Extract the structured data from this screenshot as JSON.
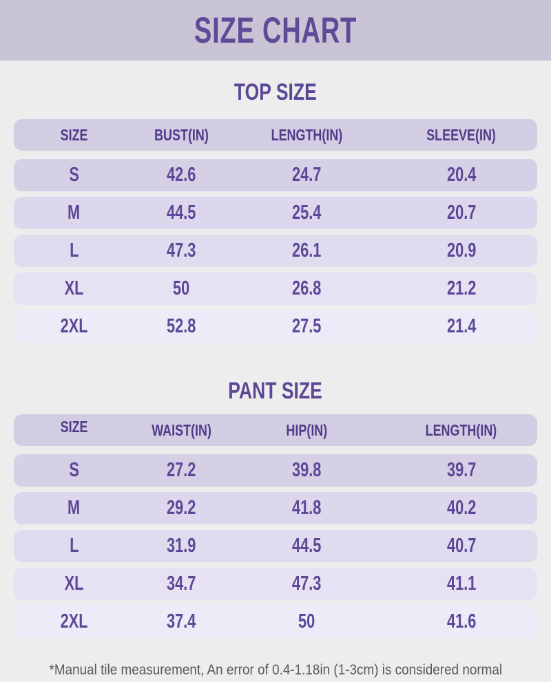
{
  "banner": {
    "title": "SIZE CHART"
  },
  "chart_data": [
    {
      "type": "table",
      "title": "TOP SIZE",
      "columns": [
        "SIZE",
        "BUST(IN)",
        "LENGTH(IN)",
        "SLEEVE(IN)"
      ],
      "rows": [
        [
          "S",
          "42.6",
          "24.7",
          "20.4"
        ],
        [
          "M",
          "44.5",
          "25.4",
          "20.7"
        ],
        [
          "L",
          "47.3",
          "26.1",
          "20.9"
        ],
        [
          "XL",
          "50",
          "26.8",
          "21.2"
        ],
        [
          "2XL",
          "52.8",
          "27.5",
          "21.4"
        ]
      ]
    },
    {
      "type": "table",
      "title": "PANT SIZE",
      "columns": [
        "SIZE",
        "WAIST(IN)",
        "HIP(IN)",
        "LENGTH(IN)"
      ],
      "rows": [
        [
          "S",
          "27.2",
          "39.8",
          "39.7"
        ],
        [
          "M",
          "29.2",
          "41.8",
          "40.2"
        ],
        [
          "L",
          "31.9",
          "44.5",
          "40.7"
        ],
        [
          "XL",
          "34.7",
          "47.3",
          "41.1"
        ],
        [
          "2XL",
          "37.4",
          "50",
          "41.6"
        ]
      ]
    }
  ],
  "footnote": "*Manual tile measurement, An error of 0.4-1.18in (1-3cm) is considered normal",
  "theme": {
    "page-bg": "#ededee",
    "banner-bg": "#c9c4d5",
    "title-color": "#5e4a96",
    "heading-color": "#5b4795",
    "header-bg": "#d3cde4",
    "header-text": "#4e3c88",
    "cell-text": "#5c4897",
    "footnote-color": "#595959",
    "row-1": "#d6d0e7",
    "row-2": "#dcd7ec",
    "row-3": "#e0dcef",
    "row-4": "#e6e2f3",
    "row-5": "#edebf8"
  }
}
